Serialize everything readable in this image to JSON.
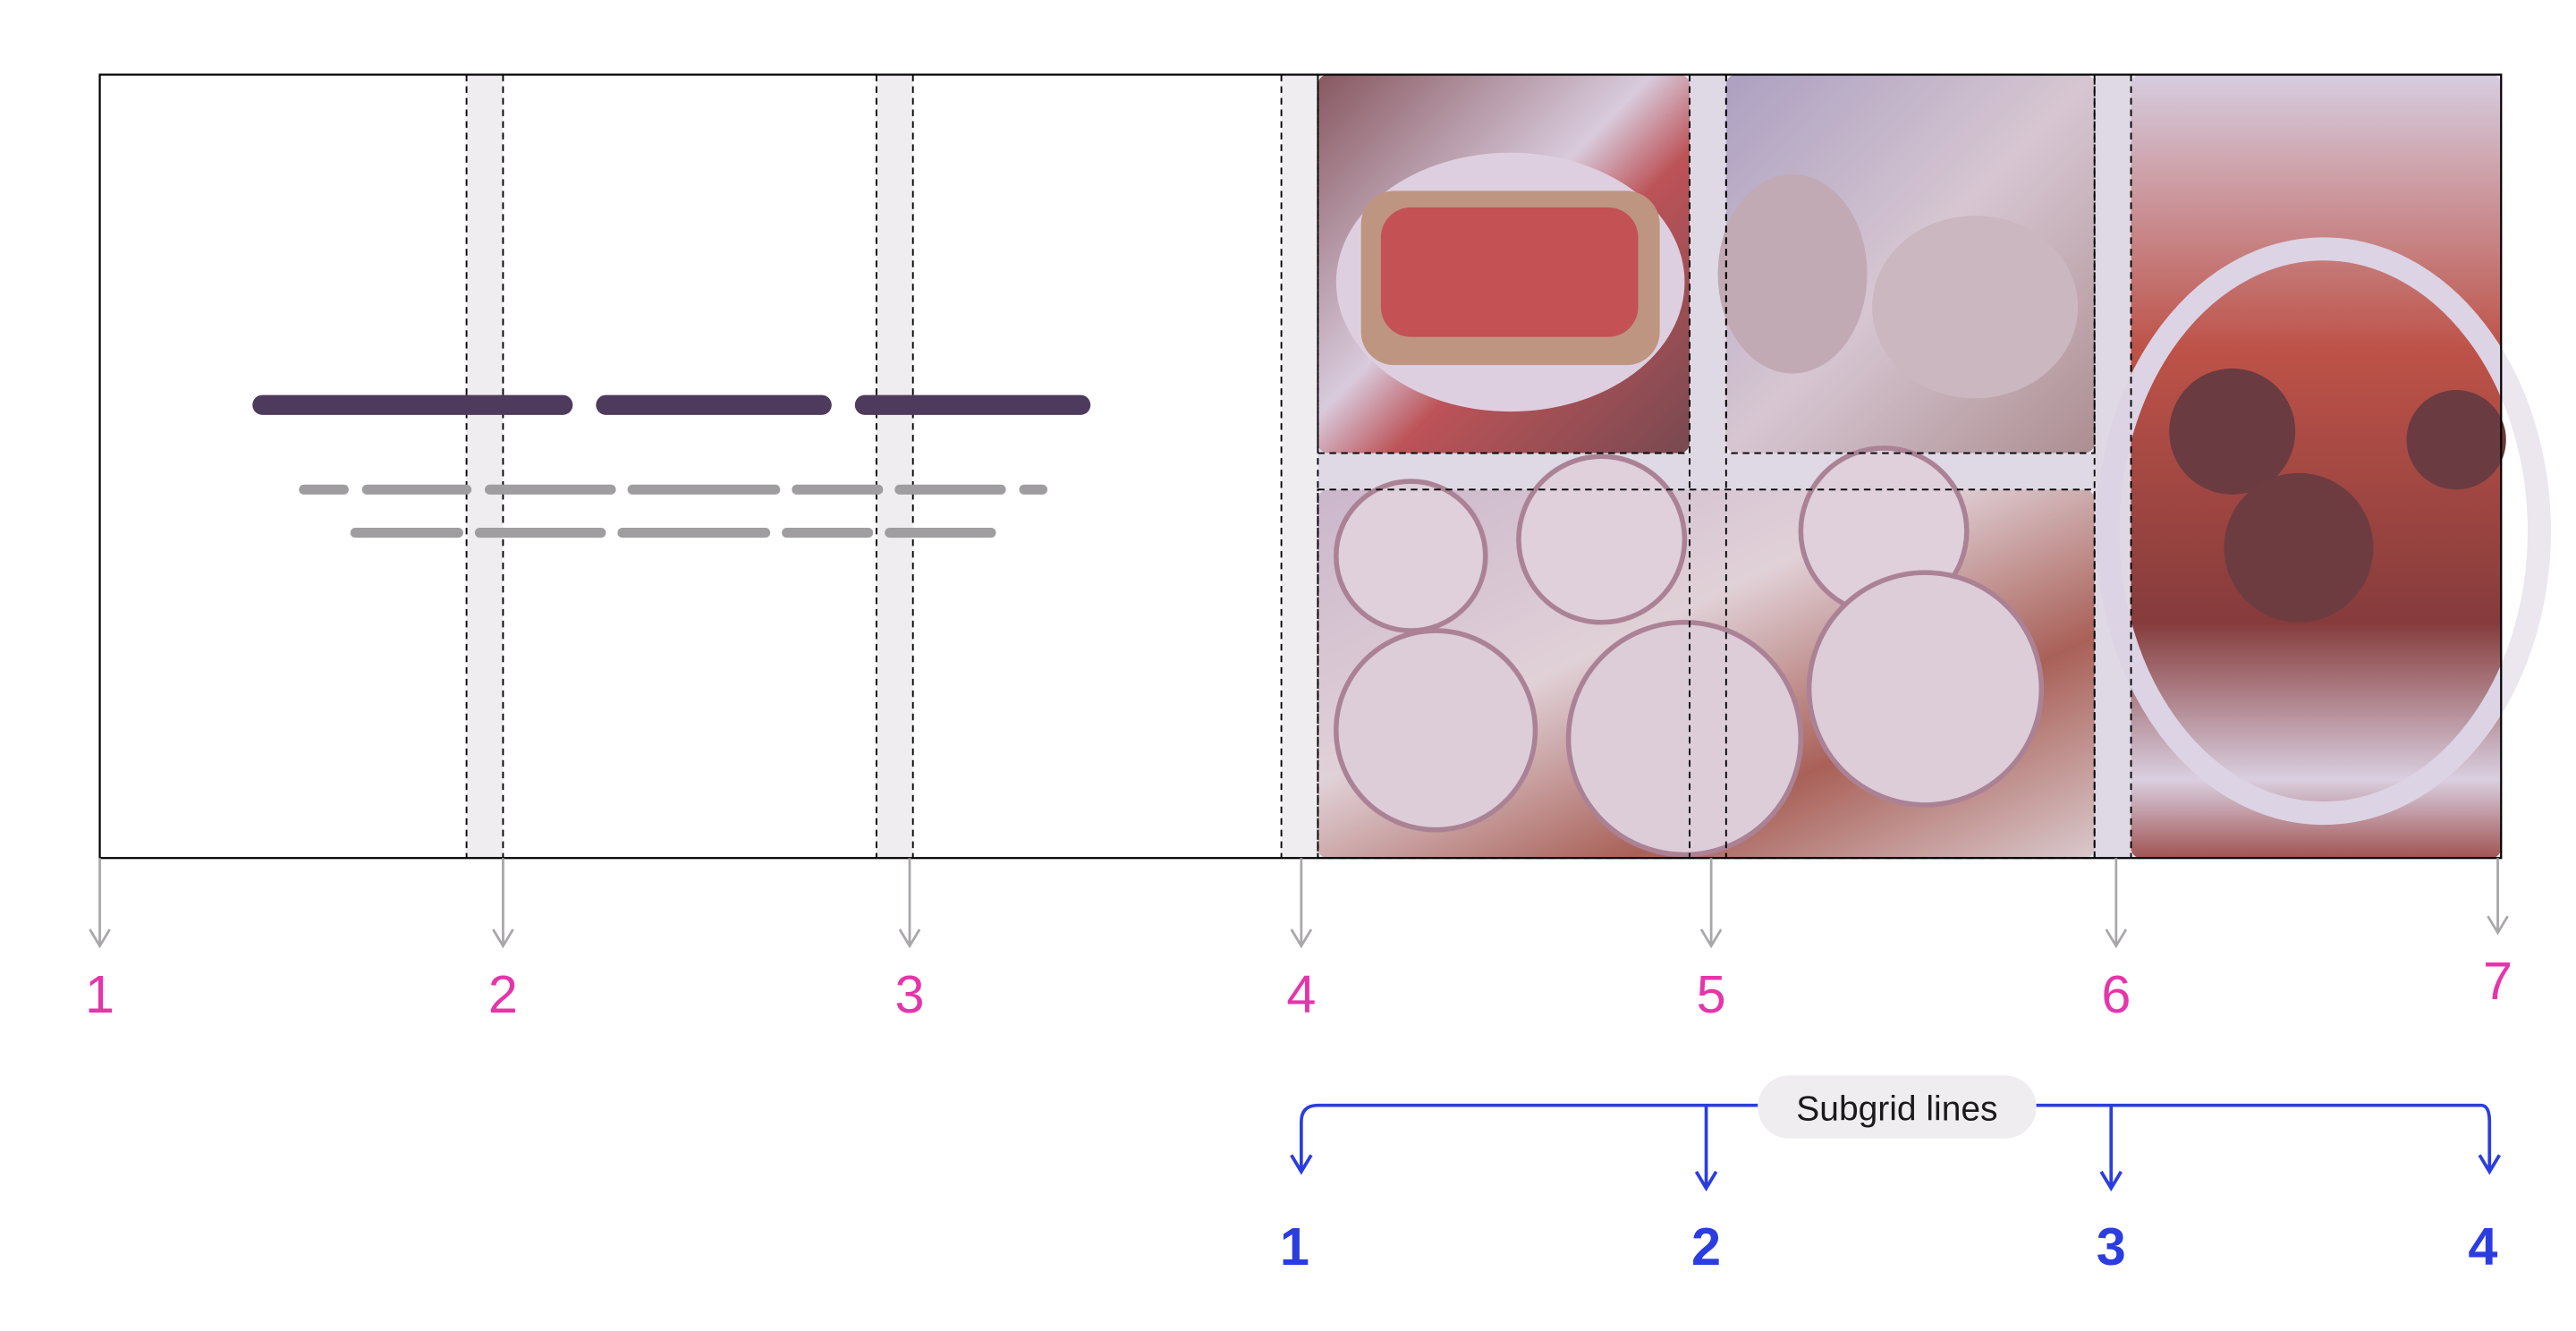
{
  "grid_line_labels": [
    "1",
    "2",
    "3",
    "4",
    "5",
    "6",
    "7"
  ],
  "subgrid": {
    "label": "Subgrid lines",
    "line_labels": [
      "1",
      "2",
      "3",
      "4"
    ]
  },
  "colors": {
    "grid_line_number": "#e535ab",
    "subgrid_accent": "#2b3de0",
    "heading_bar": "#4e3a5c",
    "text_bar": "#a09da0",
    "gap_fill": "#efedef",
    "arrow_gray": "#aaa7ab"
  },
  "images": [
    {
      "subject": "strawberry-toast"
    },
    {
      "subject": "bread-loaf"
    },
    {
      "subject": "cinnamon-rolls"
    },
    {
      "subject": "meatball-curry"
    }
  ]
}
